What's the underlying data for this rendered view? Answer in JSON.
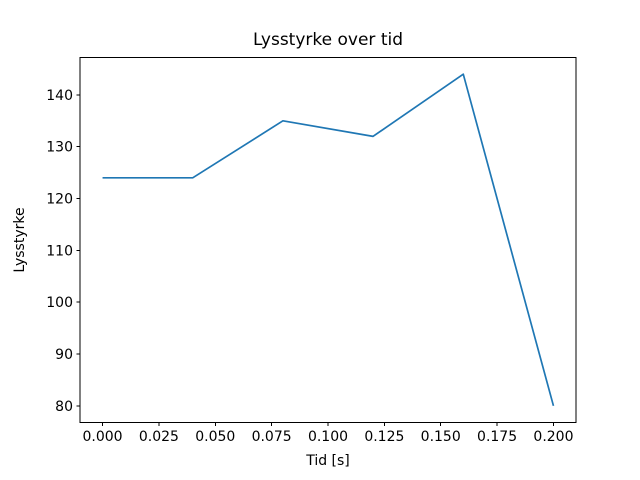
{
  "chart_data": {
    "type": "line",
    "title": "Lysstyrke over tid",
    "xlabel": "Tid [s]",
    "ylabel": "Lysstyrke",
    "x": [
      0.0,
      0.04,
      0.08,
      0.12,
      0.16,
      0.2
    ],
    "y": [
      124,
      124,
      135,
      132,
      144,
      80
    ],
    "series": [
      {
        "name": "Lysstyrke",
        "values": [
          124,
          124,
          135,
          132,
          144,
          80
        ]
      }
    ],
    "xlim": [
      -0.01,
      0.21
    ],
    "ylim": [
      76.8,
      147.2
    ],
    "xtick_labels": [
      "0.000",
      "0.025",
      "0.050",
      "0.075",
      "0.100",
      "0.125",
      "0.150",
      "0.175",
      "0.200"
    ],
    "ytick_labels": [
      "80",
      "90",
      "100",
      "110",
      "120",
      "130",
      "140"
    ],
    "line_color": "#1f77b4",
    "spine_color": "#000000",
    "grid": false,
    "legend_position": "none"
  }
}
